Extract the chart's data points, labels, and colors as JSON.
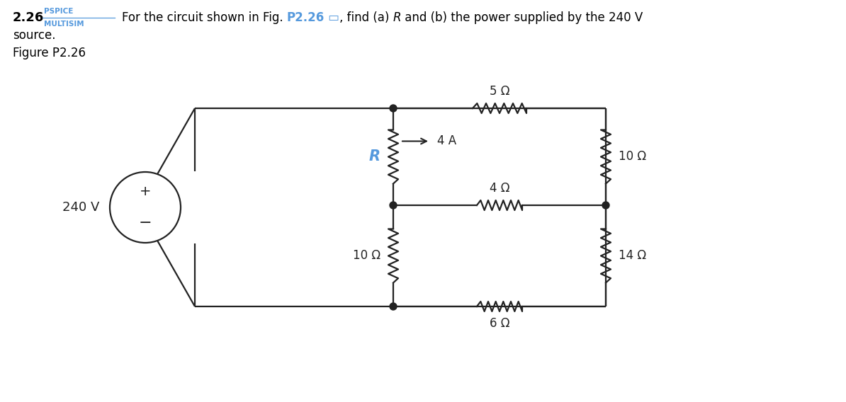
{
  "title_num": "2.26",
  "title_pspice": "PSPICE",
  "title_multisim": "MULTISIM",
  "title_text1a": "For the circuit shown in Fig. ",
  "title_p226": "P2.26",
  "title_icon": "▭",
  "title_text1b": ", find (a) ",
  "title_R": "R",
  "title_text1c": " and (b) the power supplied by the 240 V",
  "title_text2": "source.",
  "figure_label": "Figure P2.26",
  "bg_color": "#ffffff",
  "text_color": "#000000",
  "blue_color": "#5599dd",
  "circuit_color": "#222222",
  "voltage_source": "240 V",
  "R5": "5 Ω",
  "R4": "4 Ω",
  "R6": "6 Ω",
  "R10_left": "10 Ω",
  "R10_right": "10 Ω",
  "R14": "14 Ω",
  "R_label": "R",
  "current_label": "4 A"
}
